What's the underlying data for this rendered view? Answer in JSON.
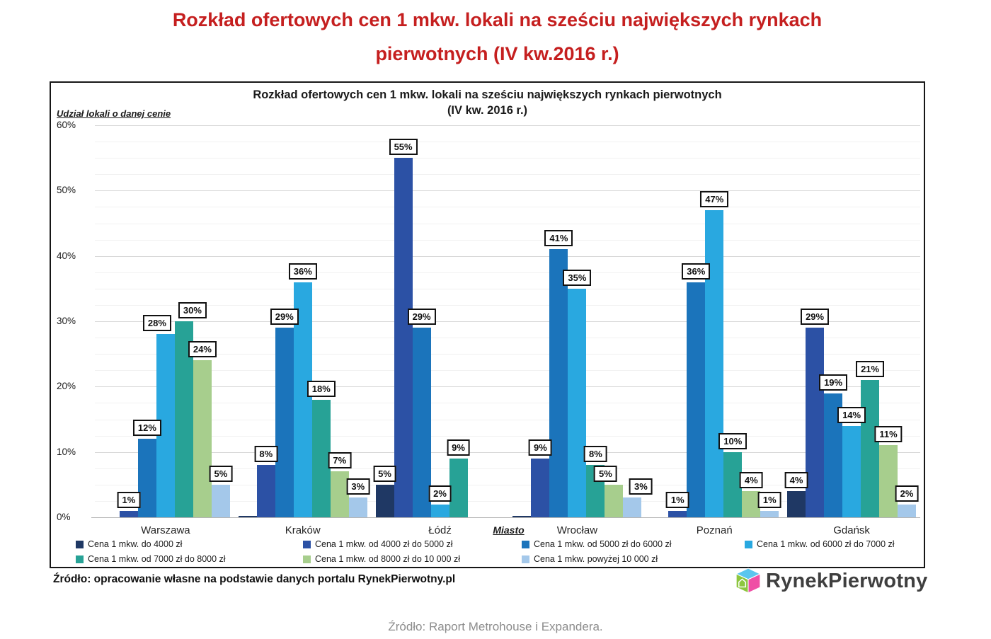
{
  "page": {
    "main_title_line1": "Rozkład ofertowych cen 1 mkw. lokali na sześciu największych rynkach",
    "main_title_line2": "pierwotnych (IV kw.2016 r.)",
    "main_title_color": "#c51f1f",
    "source_line": "Źródło: opracowanie własne na podstawie danych portalu RynekPierwotny.pl",
    "footer_source": "Źródło: Raport Metrohouse i Expandera.",
    "footer_color": "#8c8c8c",
    "logo": {
      "text": "RynekPierwotny",
      "cube_top_color": "#5bc6ee",
      "cube_front_color": "#8dc63f",
      "cube_side_color": "#ef4fa5"
    }
  },
  "chart_data": {
    "type": "bar",
    "title_line1": "Rozkład ofertowych cen 1 mkw. lokali na sześciu największych rynkach pierwotnych",
    "title_line2": "(IV kw. 2016 r.)",
    "y_axis_caption": "Udział lokali o danej cenie",
    "x_axis_caption": "Miasto",
    "ylim": [
      0,
      60
    ],
    "y_tick_step": 10,
    "y_minor_step": 2.5,
    "y_tick_suffix": "%",
    "grid": true,
    "legend_position": "bottom",
    "categories": [
      "Warszawa",
      "Kraków",
      "Łódź",
      "Wrocław",
      "Poznań",
      "Gdańsk"
    ],
    "series": [
      {
        "name": "Cena 1 mkw. do 4000 zł",
        "color": "#1f3864",
        "values": [
          0,
          0,
          5,
          0,
          0,
          4
        ],
        "hairline_cities": [
          "Kraków",
          "Wrocław"
        ]
      },
      {
        "name": "Cena 1 mkw. od 4000 zł do 5000 zł",
        "color": "#2c51a5",
        "values": [
          1,
          8,
          55,
          9,
          1,
          29
        ]
      },
      {
        "name": "Cena 1 mkw. od 5000 zł do 6000 zł",
        "color": "#1b74bb",
        "values": [
          12,
          29,
          29,
          41,
          36,
          19
        ]
      },
      {
        "name": "Cena 1 mkw. od 6000 zł do 7000 zł",
        "color": "#29a8e0",
        "values": [
          28,
          36,
          2,
          35,
          47,
          14
        ]
      },
      {
        "name": "Cena 1 mkw. od 7000 zł do 8000 zł",
        "color": "#27a296",
        "values": [
          30,
          18,
          9,
          8,
          10,
          21
        ]
      },
      {
        "name": "Cena 1 mkw. od 8000 zł do 10 000 zł",
        "color": "#a7ce8d",
        "values": [
          24,
          7,
          0,
          5,
          4,
          11
        ]
      },
      {
        "name": "Cena 1 mkw. powyżej 10 000 zł",
        "color": "#a4c8ea",
        "values": [
          5,
          3,
          0,
          3,
          1,
          2
        ]
      }
    ],
    "legend_rows": [
      [
        0,
        1,
        2,
        3
      ],
      [
        4,
        5,
        6
      ]
    ]
  }
}
